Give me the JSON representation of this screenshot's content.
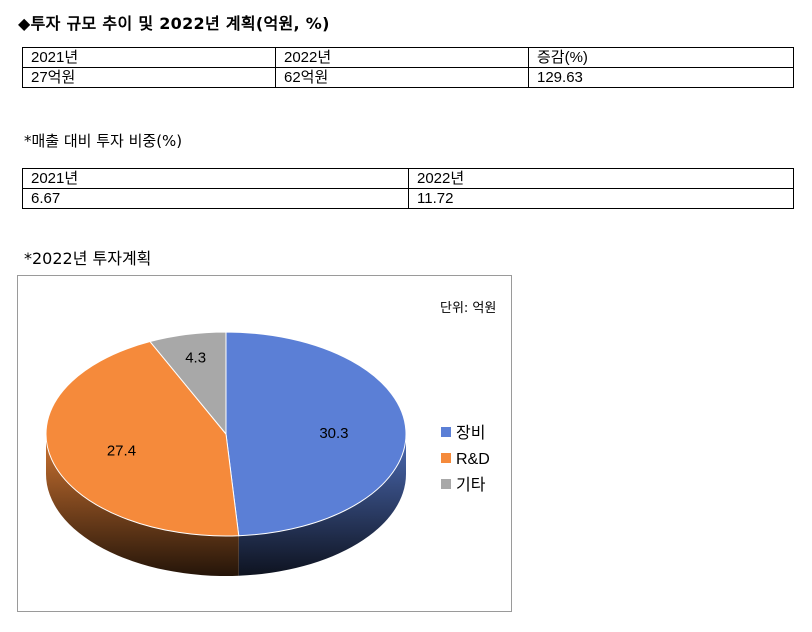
{
  "title": "◆투자 규모 추이 및 2022년 계획(억원, %)",
  "table1": {
    "headers": [
      "2021년",
      "2022년",
      "증감(%)"
    ],
    "values": [
      "27억원",
      "62억원",
      "129.63"
    ]
  },
  "subtitle2": "*매출 대비 투자 비중(%)",
  "table2": {
    "headers": [
      "2021년",
      "2022년"
    ],
    "values": [
      "6.67",
      "11.72"
    ]
  },
  "subtitle3": "*2022년 투자계획",
  "chart_data": {
    "type": "pie",
    "title": "",
    "unit_label": "단위: 억원",
    "categories": [
      "장비",
      "R&D",
      "기타"
    ],
    "values": [
      30.3,
      27.4,
      4.3
    ],
    "data_labels": [
      "30.3",
      "27.4",
      "4.3"
    ],
    "colors": [
      "#5B7FD6",
      "#F58A3B",
      "#A8A8A8"
    ],
    "style": "3d",
    "legend_position": "right"
  }
}
